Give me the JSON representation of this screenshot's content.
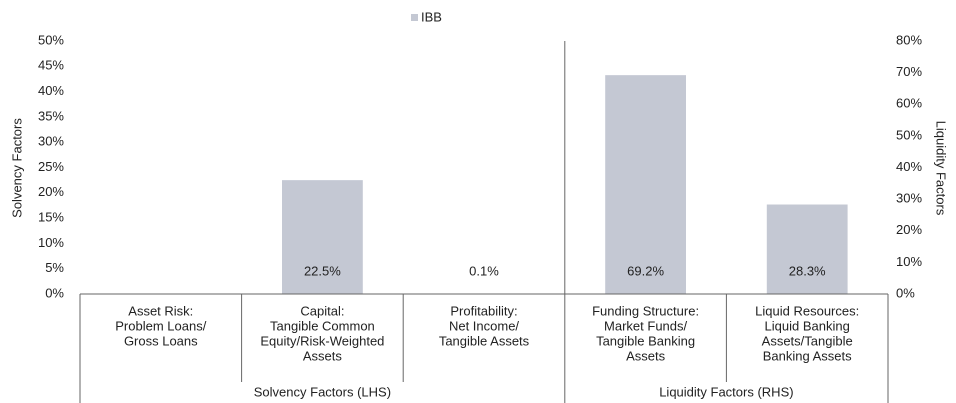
{
  "chart_data": {
    "type": "bar",
    "categories": [
      [
        "Asset Risk:",
        "Problem Loans/",
        "Gross Loans"
      ],
      [
        "Capital:",
        "Tangible Common",
        "Equity/Risk-Weighted",
        "Assets"
      ],
      [
        "Profitability:",
        "Net Income/",
        "Tangible Assets"
      ],
      [
        "Funding Structure:",
        "Market Funds/",
        "Tangible Banking",
        "Assets"
      ],
      [
        "Liquid Resources:",
        "Liquid Banking",
        "Assets/Tangible",
        "Banking Assets"
      ]
    ],
    "groups": [
      {
        "label": "Solvency Factors (LHS)",
        "span": 3
      },
      {
        "label": "Liquidity Factors (RHS)",
        "span": 2
      }
    ],
    "series": [
      {
        "name": "IBB",
        "color": "#c4c8d3",
        "values": [
          null,
          22.5,
          0.1,
          null,
          null
        ],
        "value_labels": [
          null,
          "22.5%",
          "0.1%",
          null,
          null
        ]
      },
      {
        "color": "#c4c8d3",
        "axis": "y2",
        "values": [
          null,
          null,
          null,
          69.2,
          28.3
        ],
        "value_labels": [
          null,
          null,
          null,
          "69.2%",
          "28.3%"
        ]
      }
    ],
    "ylabel": "Solvency Factors",
    "y2label": "Liquidity Factors",
    "ylim": [
      0,
      50
    ],
    "yticks": [
      {
        "value": 0,
        "label": "0%"
      },
      {
        "value": 5,
        "label": "5%"
      },
      {
        "value": 10,
        "label": "10%"
      },
      {
        "value": 15,
        "label": "15%"
      },
      {
        "value": 20,
        "label": "20%"
      },
      {
        "value": 25,
        "label": "25%"
      },
      {
        "value": 30,
        "label": "30%"
      },
      {
        "value": 35,
        "label": "35%"
      },
      {
        "value": 40,
        "label": "40%"
      },
      {
        "value": 45,
        "label": "45%"
      },
      {
        "value": 50,
        "label": "50%"
      }
    ],
    "y2lim": [
      0,
      80
    ],
    "y2ticks": [
      {
        "value": 0,
        "label": "0%"
      },
      {
        "value": 10,
        "label": "10%"
      },
      {
        "value": 20,
        "label": "20%"
      },
      {
        "value": 30,
        "label": "30%"
      },
      {
        "value": 40,
        "label": "40%"
      },
      {
        "value": 50,
        "label": "50%"
      },
      {
        "value": 60,
        "label": "60%"
      },
      {
        "value": 70,
        "label": "70%"
      },
      {
        "value": 80,
        "label": "80%"
      }
    ],
    "legend": "top"
  }
}
